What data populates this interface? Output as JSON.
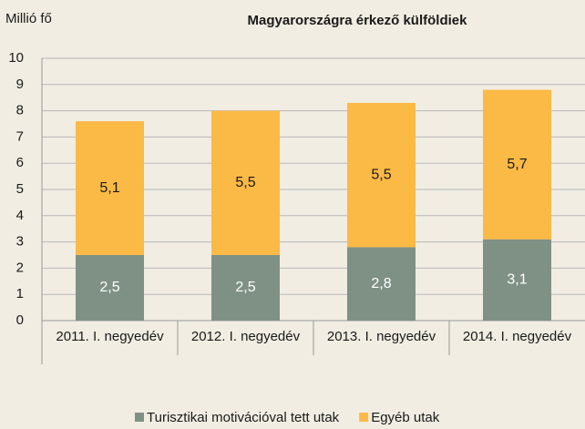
{
  "chart_data": {
    "type": "stacked_bar",
    "title": "Magyarországra érkező külföldiek",
    "y_label": "Millió fő",
    "categories": [
      "2011. I. negyedév",
      "2012. I. negyedév",
      "2013. I. negyedév",
      "2014. I. negyedév"
    ],
    "series": [
      {
        "name": "Turisztikai motivációval tett utak",
        "color": "#7f9185",
        "values": [
          2.5,
          2.5,
          2.8,
          3.1
        ],
        "value_labels": [
          "2,5",
          "2,5",
          "2,8",
          "3,1"
        ]
      },
      {
        "name": "Egyéb utak",
        "color": "#fbb946",
        "values": [
          5.1,
          5.5,
          5.5,
          5.7
        ],
        "value_labels": [
          "5,1",
          "5,5",
          "5,5",
          "5,7"
        ]
      }
    ],
    "ylim": [
      0,
      10
    ],
    "yticks": [
      0,
      1,
      2,
      3,
      4,
      5,
      6,
      7,
      8,
      9,
      10
    ],
    "grid": true,
    "legend": "bottom"
  }
}
